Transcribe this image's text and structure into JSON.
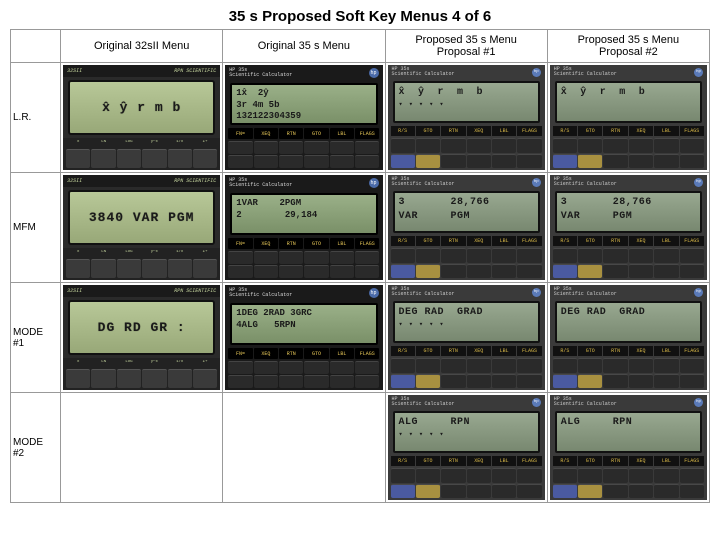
{
  "title": "35 s Proposed Soft Key Menus 4 of 6",
  "columns": [
    {
      "label": ""
    },
    {
      "label": "Original 32sII Menu"
    },
    {
      "label": "Original 35 s Menu"
    },
    {
      "label": "Proposed 35 s Menu\nProposal #1"
    },
    {
      "label": "Proposed 35 s Menu\nProposal #2"
    }
  ],
  "fn_35s": [
    "FN=",
    "XEQ",
    "RTN",
    "GTO",
    "LBL",
    "FLAGS"
  ],
  "fn_prop": [
    "R/S",
    "GTO",
    "RTN",
    "XEQ",
    "LBL",
    "FLAGS"
  ],
  "rows": [
    {
      "id": "L.R.",
      "c32_top_left": "32SII",
      "c32_top_right": "RPN SCIENTIFIC",
      "c32_lcd": "x̂ ŷ r m b",
      "c35_lcd": "1x̂  2ŷ\n3r 4m 5b\n132122304359",
      "p1_lcd": "x̂  ŷ  r  m  b",
      "p2_lcd": "x̂  ŷ  r  m  b"
    },
    {
      "id": "MFM",
      "c32_top_left": "32SII",
      "c32_top_right": "RPN SCIENTIFIC",
      "c32_lcd": "3840 VAR PGM",
      "c35_lcd": "1VAR    2PGM\n2        29,184",
      "p1_lcd": "3       28,766\nVAR     PGM",
      "p2_lcd": "3       28,766\nVAR     PGM"
    },
    {
      "id": "MODE\n#1",
      "c32_top_left": "32SII",
      "c32_top_right": "RPN SCIENTIFIC",
      "c32_lcd": "DG RD GR  :",
      "c35_lcd": "1DEG 2RAD 3GRC\n4ALG   5RPN",
      "p1_lcd": "DEG RAD  GRAD",
      "p2_lcd": "DEG RAD  GRAD"
    },
    {
      "id": "MODE\n#2",
      "empty_c32": true,
      "empty_c35": true,
      "p1_lcd": "ALG     RPN",
      "p2_lcd": "ALG     RPN"
    }
  ],
  "logo35": "HP 35s\nScientific Calculator",
  "hp_text": "hp"
}
